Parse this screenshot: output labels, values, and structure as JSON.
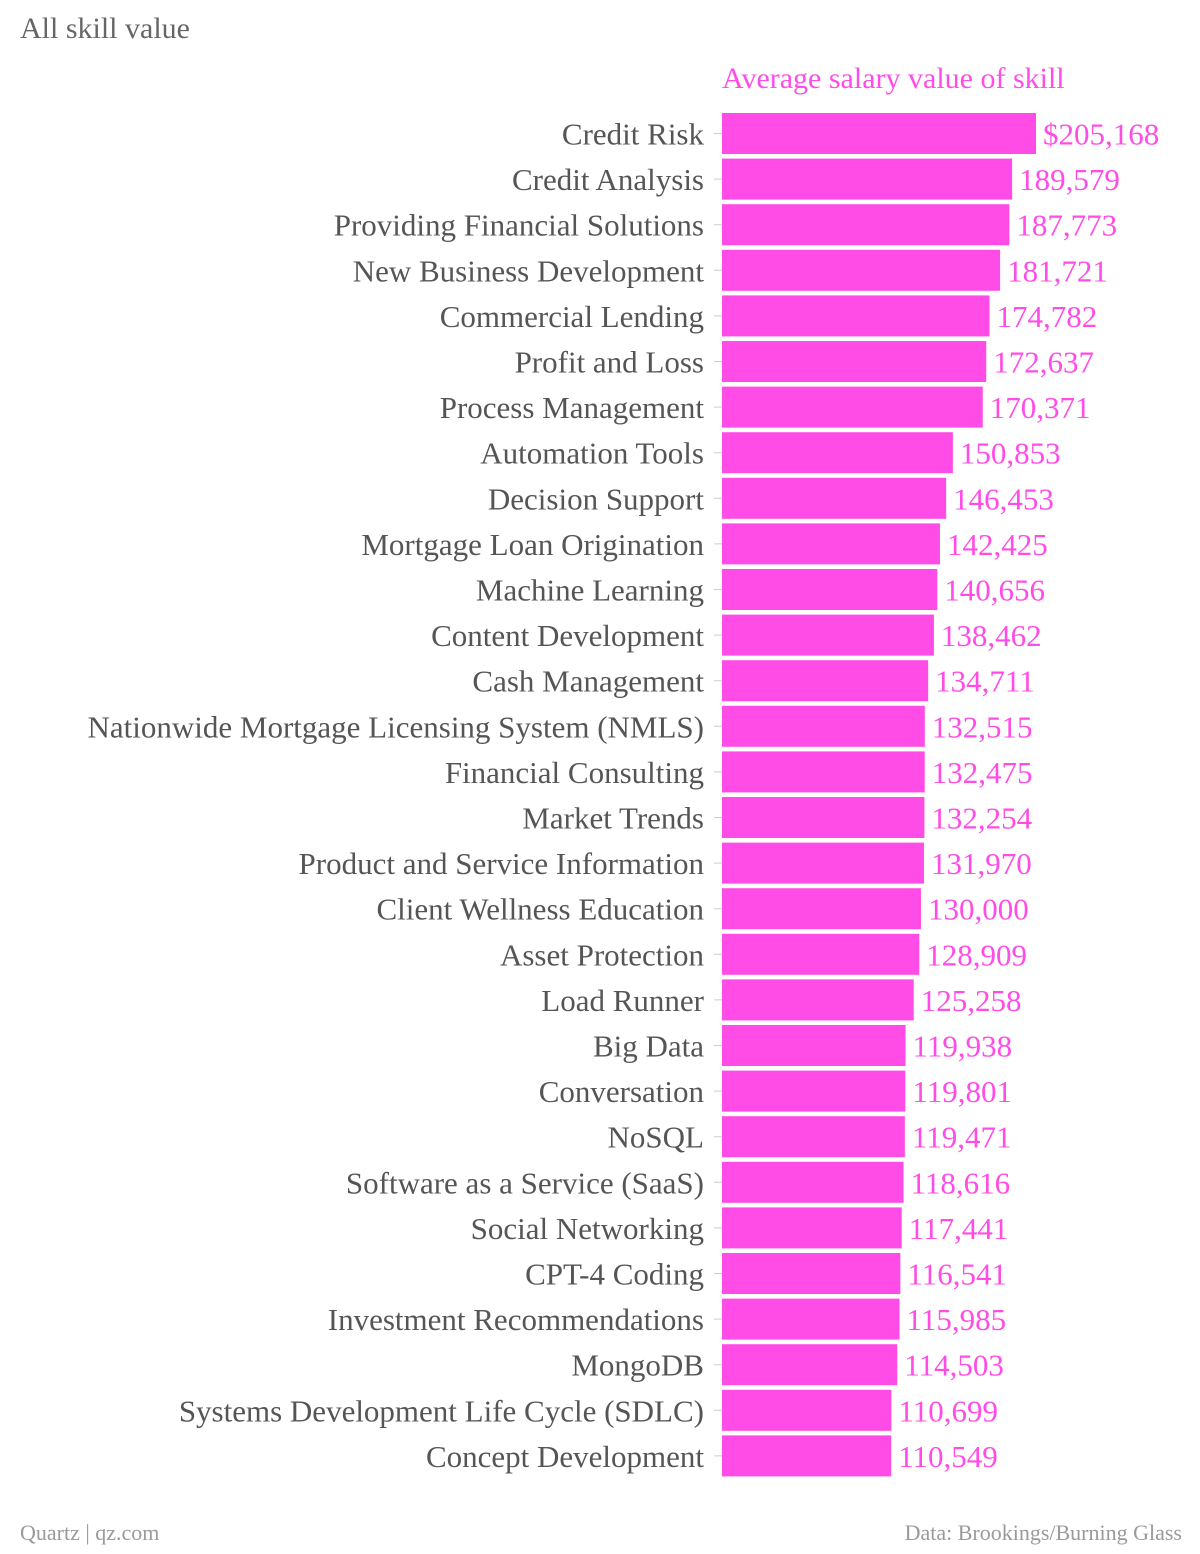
{
  "chart_data": {
    "type": "bar",
    "orientation": "horizontal",
    "title": "All skill value",
    "series_title": "Average salary value of skill",
    "color": "#ff4ce6",
    "label_color": "#555555",
    "value_prefix_first": "$",
    "categories": [
      "Credit Risk",
      "Credit Analysis",
      "Providing Financial Solutions",
      "New Business Development",
      "Commercial Lending",
      "Profit and Loss",
      "Process Management",
      "Automation Tools",
      "Decision Support",
      "Mortgage Loan Origination",
      "Machine Learning",
      "Content Development",
      "Cash Management",
      "Nationwide Mortgage Licensing System (NMLS)",
      "Financial Consulting",
      "Market Trends",
      "Product and Service Information",
      "Client Wellness Education",
      "Asset Protection",
      "Load Runner",
      "Big Data",
      "Conversation",
      "NoSQL",
      "Software as a Service (SaaS)",
      "Social Networking",
      "CPT-4 Coding",
      "Investment Recommendations",
      "MongoDB",
      "Systems Development Life Cycle (SDLC)",
      "Concept Development"
    ],
    "values": [
      205168,
      189579,
      187773,
      181721,
      174782,
      172637,
      170371,
      150853,
      146453,
      142425,
      140656,
      138462,
      134711,
      132515,
      132475,
      132254,
      131970,
      130000,
      128909,
      125258,
      119938,
      119801,
      119471,
      118616,
      117441,
      116541,
      115985,
      114503,
      110699,
      110549
    ],
    "xlim": [
      0,
      205168
    ],
    "grid": false,
    "legend": "none"
  },
  "footer": {
    "source_left": "Quartz | qz.com",
    "source_right": "Data: Brookings/Burning Glass"
  }
}
